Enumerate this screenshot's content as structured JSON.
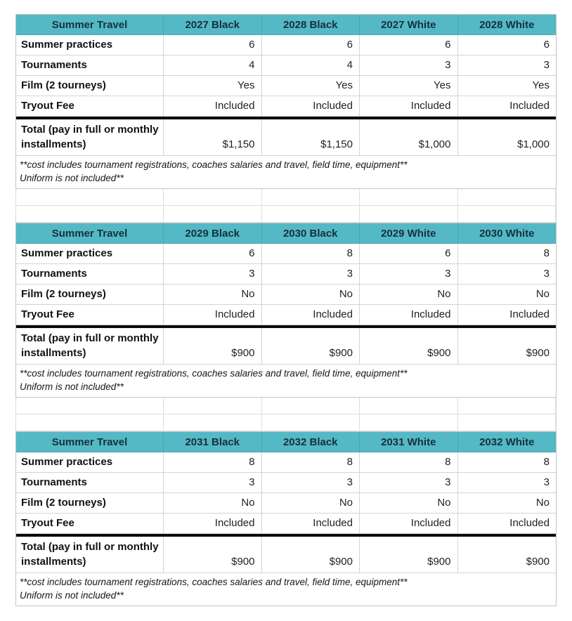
{
  "styles": {
    "header_bg": "#54b9c5",
    "header_text": "#14313c",
    "grid_border": "#d4d4d4",
    "thick_rule": "#0c0c0c"
  },
  "tables": [
    {
      "header": [
        "Summer Travel",
        "2027 Black",
        "2028 Black",
        "2027 White",
        "2028 White"
      ],
      "rows": [
        {
          "label": "Summer practices",
          "values": [
            "6",
            "6",
            "6",
            "6"
          ]
        },
        {
          "label": "Tournaments",
          "values": [
            "4",
            "4",
            "3",
            "3"
          ]
        },
        {
          "label": "Film (2 tourneys)",
          "values": [
            "Yes",
            "Yes",
            "Yes",
            "Yes"
          ]
        },
        {
          "label": "Tryout Fee",
          "values": [
            "Included",
            "Included",
            "Included",
            "Included"
          ]
        }
      ],
      "total": {
        "label": "Total (pay in full or monthly installments)",
        "values": [
          "$1,150",
          "$1,150",
          "$1,000",
          "$1,000"
        ]
      },
      "footnote_line1": "**cost includes tournament registrations, coaches salaries and travel, field time, equipment**",
      "footnote_line2": "Uniform is not included**"
    },
    {
      "header": [
        "Summer Travel",
        "2029 Black",
        "2030 Black",
        "2029 White",
        "2030 White"
      ],
      "rows": [
        {
          "label": "Summer practices",
          "values": [
            "6",
            "8",
            "6",
            "8"
          ]
        },
        {
          "label": "Tournaments",
          "values": [
            "3",
            "3",
            "3",
            "3"
          ]
        },
        {
          "label": "Film (2 tourneys)",
          "values": [
            "No",
            "No",
            "No",
            "No"
          ]
        },
        {
          "label": "Tryout Fee",
          "values": [
            "Included",
            "Included",
            "Included",
            "Included"
          ]
        }
      ],
      "total": {
        "label": "Total (pay in full or monthly installments)",
        "values": [
          "$900",
          "$900",
          "$900",
          "$900"
        ]
      },
      "footnote_line1": "**cost includes tournament registrations, coaches salaries and travel, field time, equipment**",
      "footnote_line2": "Uniform is not included**"
    },
    {
      "header": [
        "Summer Travel",
        "2031 Black",
        "2032 Black",
        "2031 White",
        "2032 White"
      ],
      "rows": [
        {
          "label": "Summer practices",
          "values": [
            "8",
            "8",
            "8",
            "8"
          ]
        },
        {
          "label": "Tournaments",
          "values": [
            "3",
            "3",
            "3",
            "3"
          ]
        },
        {
          "label": "Film (2 tourneys)",
          "values": [
            "No",
            "No",
            "No",
            "No"
          ]
        },
        {
          "label": "Tryout Fee",
          "values": [
            "Included",
            "Included",
            "Included",
            "Included"
          ]
        }
      ],
      "total": {
        "label": "Total (pay in full or monthly installments)",
        "values": [
          "$900",
          "$900",
          "$900",
          "$900"
        ]
      },
      "footnote_line1": "**cost includes tournament registrations, coaches salaries and travel, field time, equipment**",
      "footnote_line2": "Uniform is not included**"
    }
  ]
}
